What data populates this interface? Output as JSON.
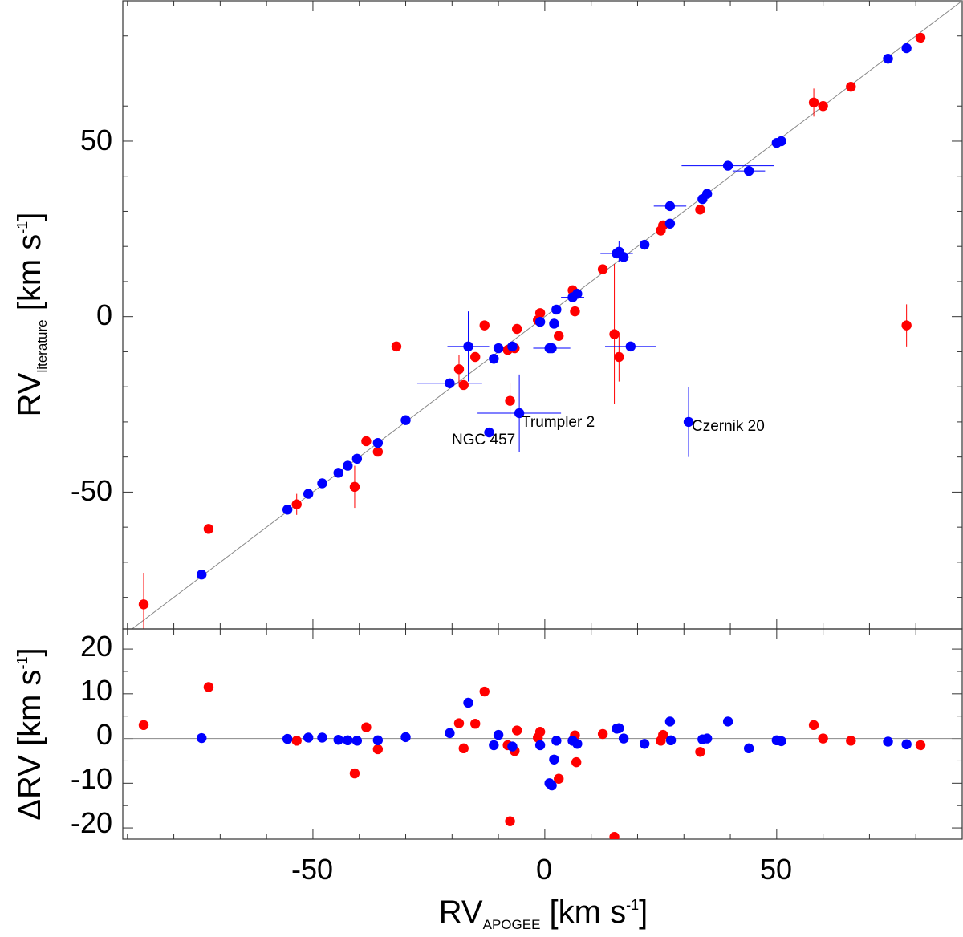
{
  "colors": {
    "red_series": "#ff0000",
    "blue_series": "#0000ff",
    "axis": "#333333",
    "reference_line": "#888888"
  },
  "chart_data": [
    {
      "type": "scatter",
      "panel": "top",
      "title": "",
      "xlabel": {
        "main": "RV",
        "sub": "APOGEE",
        "unit_pre": " [km s",
        "sup": "-1",
        "unit_post": "]"
      },
      "ylabel": {
        "main": "RV",
        "sub": "literature",
        "unit_pre": " [km s",
        "sup": "-1",
        "unit_post": "]"
      },
      "xlim": [
        -91,
        90
      ],
      "ylim": [
        -89,
        90
      ],
      "yticks": [
        -50,
        0,
        50
      ],
      "ytick_labels": [
        "-50",
        "0",
        "50"
      ],
      "reference_line": "y = x",
      "annotations": [
        {
          "text": "Trumpler 2",
          "x": -5.5,
          "y": -30.5
        },
        {
          "text": "NGC 457",
          "x": -20,
          "y": -37.5
        },
        {
          "text": "Czernik 20",
          "x": 32,
          "y": -32
        }
      ],
      "series": [
        {
          "name": "red",
          "points": [
            {
              "x": -86.5,
              "y": -82.0,
              "yerr": 9.0
            },
            {
              "x": -72.5,
              "y": -60.5
            },
            {
              "x": -53.5,
              "y": -53.5,
              "yerr": 3.0
            },
            {
              "x": -41,
              "y": -48.5,
              "yerr": 6.0
            },
            {
              "x": -38.5,
              "y": -35.5
            },
            {
              "x": -36,
              "y": -38.5
            },
            {
              "x": -32,
              "y": -8.5
            },
            {
              "x": -18.5,
              "y": -15.0,
              "yerr": 4.0
            },
            {
              "x": -17.5,
              "y": -19.5
            },
            {
              "x": -15,
              "y": -11.5
            },
            {
              "x": -13,
              "y": -2.5
            },
            {
              "x": -8,
              "y": -9.5
            },
            {
              "x": -7.5,
              "y": -24.0,
              "yerr": 5.0
            },
            {
              "x": -6.5,
              "y": -9.0
            },
            {
              "x": -6,
              "y": -3.5
            },
            {
              "x": -1.5,
              "y": -1.0
            },
            {
              "x": -1,
              "y": 1.0
            },
            {
              "x": 3,
              "y": -5.5
            },
            {
              "x": 6,
              "y": 7.5
            },
            {
              "x": 6.5,
              "y": 1.5
            },
            {
              "x": 12.5,
              "y": 13.5
            },
            {
              "x": 15,
              "y": -5.0,
              "yerr": 20.0
            },
            {
              "x": 16,
              "y": -11.5,
              "yerr": 7.0
            },
            {
              "x": 25,
              "y": 24.5
            },
            {
              "x": 25.5,
              "y": 26.0
            },
            {
              "x": 33.5,
              "y": 30.5
            },
            {
              "x": 58,
              "y": 61.0,
              "yerr": 4.0
            },
            {
              "x": 60,
              "y": 60.0
            },
            {
              "x": 66,
              "y": 65.5
            },
            {
              "x": 78,
              "y": -2.5,
              "yerr": 6.0
            },
            {
              "x": 81,
              "y": 79.5
            }
          ]
        },
        {
          "name": "blue",
          "points": [
            {
              "x": -74,
              "y": -73.5
            },
            {
              "x": -55.5,
              "y": -55.0
            },
            {
              "x": -51,
              "y": -50.5
            },
            {
              "x": -48,
              "y": -47.5
            },
            {
              "x": -44.5,
              "y": -44.5
            },
            {
              "x": -42.5,
              "y": -42.5
            },
            {
              "x": -40.5,
              "y": -40.5
            },
            {
              "x": -36,
              "y": -36.0
            },
            {
              "x": -30,
              "y": -29.5
            },
            {
              "x": -20.5,
              "y": -19.0,
              "xerr": 7.0
            },
            {
              "x": -16.5,
              "y": -8.5,
              "xerr": 4.5,
              "yerr": 10.0
            },
            {
              "x": -12,
              "y": -33.0
            },
            {
              "x": -11,
              "y": -12.0
            },
            {
              "x": -10,
              "y": -9.0
            },
            {
              "x": -7,
              "y": -8.5
            },
            {
              "x": -5.5,
              "y": -27.5,
              "xerr": 9.0,
              "yerr": 11.0
            },
            {
              "x": -1,
              "y": -1.5
            },
            {
              "x": 1,
              "y": -9.0
            },
            {
              "x": 1.5,
              "y": -9.0,
              "xerr": 4.0
            },
            {
              "x": 2,
              "y": -2.0
            },
            {
              "x": 2.5,
              "y": 2.0
            },
            {
              "x": 6,
              "y": 5.5,
              "xerr": 2.5
            },
            {
              "x": 7,
              "y": 6.5
            },
            {
              "x": 15.5,
              "y": 18.0,
              "xerr": 3.5
            },
            {
              "x": 16,
              "y": 18.5,
              "yerr": 3.0
            },
            {
              "x": 17,
              "y": 17.0
            },
            {
              "x": 18.5,
              "y": -8.5,
              "xerr": 5.5
            },
            {
              "x": 21.5,
              "y": 20.5
            },
            {
              "x": 27,
              "y": 31.5,
              "xerr": 3.5
            },
            {
              "x": 27,
              "y": 26.5
            },
            {
              "x": 31,
              "y": -30.0,
              "yerr": 10.0
            },
            {
              "x": 34,
              "y": 33.5
            },
            {
              "x": 35,
              "y": 35.0
            },
            {
              "x": 39.5,
              "y": 43.0,
              "xerr": 10.0
            },
            {
              "x": 44,
              "y": 41.5,
              "xerr": 3.5
            },
            {
              "x": 50,
              "y": 49.5
            },
            {
              "x": 51,
              "y": 50.0
            },
            {
              "x": 74,
              "y": 73.5
            },
            {
              "x": 78,
              "y": 76.5
            }
          ]
        }
      ]
    },
    {
      "type": "scatter",
      "panel": "bottom",
      "title": "",
      "xlabel": {
        "main": "RV",
        "sub": "APOGEE",
        "unit_pre": " [km s",
        "sup": "-1",
        "unit_post": "]"
      },
      "ylabel": {
        "main": "ΔRV",
        "unit_pre": " [km s",
        "sup": "-1",
        "unit_post": "]"
      },
      "xlim": [
        -91,
        90
      ],
      "ylim": [
        -22.5,
        24.5
      ],
      "xticks": [
        -50,
        0,
        50
      ],
      "xtick_labels": [
        "-50",
        "0",
        "50"
      ],
      "yticks": [
        -20,
        -10,
        0,
        10,
        20
      ],
      "ytick_labels": [
        "-20",
        "-10",
        "0",
        "10",
        "20"
      ],
      "reference_line": "y = 0",
      "series": [
        {
          "name": "red",
          "points": [
            {
              "x": -86.5,
              "y": 3.0
            },
            {
              "x": -72.5,
              "y": 11.5
            },
            {
              "x": -53.5,
              "y": -0.5
            },
            {
              "x": -41,
              "y": -7.8
            },
            {
              "x": -38.5,
              "y": 2.5
            },
            {
              "x": -36,
              "y": -2.4
            },
            {
              "x": -18.5,
              "y": 3.4
            },
            {
              "x": -17.5,
              "y": -2.2
            },
            {
              "x": -15,
              "y": 3.3
            },
            {
              "x": -13,
              "y": 10.5
            },
            {
              "x": -8,
              "y": -1.5
            },
            {
              "x": -7.5,
              "y": -18.5
            },
            {
              "x": -6.5,
              "y": -2.8
            },
            {
              "x": -6,
              "y": 1.8
            },
            {
              "x": -1.5,
              "y": 0.2
            },
            {
              "x": -1,
              "y": 1.5
            },
            {
              "x": 3,
              "y": -9.0
            },
            {
              "x": 6,
              "y": -0.5
            },
            {
              "x": 6.5,
              "y": 0.7
            },
            {
              "x": 6.8,
              "y": -5.3
            },
            {
              "x": 12.5,
              "y": 1.0
            },
            {
              "x": 15,
              "y": -22.0
            },
            {
              "x": 25,
              "y": -0.5
            },
            {
              "x": 25.5,
              "y": 0.8
            },
            {
              "x": 33.5,
              "y": -3.0
            },
            {
              "x": 58,
              "y": 3.0
            },
            {
              "x": 60,
              "y": 0.0
            },
            {
              "x": 66,
              "y": -0.5
            },
            {
              "x": 81,
              "y": -1.5
            }
          ]
        },
        {
          "name": "blue",
          "points": [
            {
              "x": -74,
              "y": 0.1
            },
            {
              "x": -55.5,
              "y": -0.1
            },
            {
              "x": -51,
              "y": 0.2
            },
            {
              "x": -48,
              "y": 0.2
            },
            {
              "x": -44.5,
              "y": -0.3
            },
            {
              "x": -42.5,
              "y": -0.4
            },
            {
              "x": -40.5,
              "y": -0.5
            },
            {
              "x": -36,
              "y": -0.4
            },
            {
              "x": -30,
              "y": 0.3
            },
            {
              "x": -20.5,
              "y": 1.2
            },
            {
              "x": -16.5,
              "y": 8.0
            },
            {
              "x": -11,
              "y": -1.5
            },
            {
              "x": -10,
              "y": 0.8
            },
            {
              "x": -7,
              "y": -1.8
            },
            {
              "x": -1,
              "y": -1.5
            },
            {
              "x": 1,
              "y": -10.0
            },
            {
              "x": 1.5,
              "y": -10.5
            },
            {
              "x": 2,
              "y": -4.7
            },
            {
              "x": 2.5,
              "y": -0.5
            },
            {
              "x": 6,
              "y": -0.5
            },
            {
              "x": 7,
              "y": -1.2
            },
            {
              "x": 15.5,
              "y": 2.2
            },
            {
              "x": 16,
              "y": 2.3
            },
            {
              "x": 17,
              "y": 0.0
            },
            {
              "x": 21.5,
              "y": -1.2
            },
            {
              "x": 27,
              "y": 3.8
            },
            {
              "x": 27.2,
              "y": -0.4
            },
            {
              "x": 34,
              "y": -0.2
            },
            {
              "x": 35,
              "y": 0.0
            },
            {
              "x": 39.5,
              "y": 3.8
            },
            {
              "x": 44,
              "y": -2.2
            },
            {
              "x": 50,
              "y": -0.4
            },
            {
              "x": 51,
              "y": -0.6
            },
            {
              "x": 74,
              "y": -0.7
            },
            {
              "x": 78,
              "y": -1.3
            }
          ]
        }
      ]
    }
  ]
}
